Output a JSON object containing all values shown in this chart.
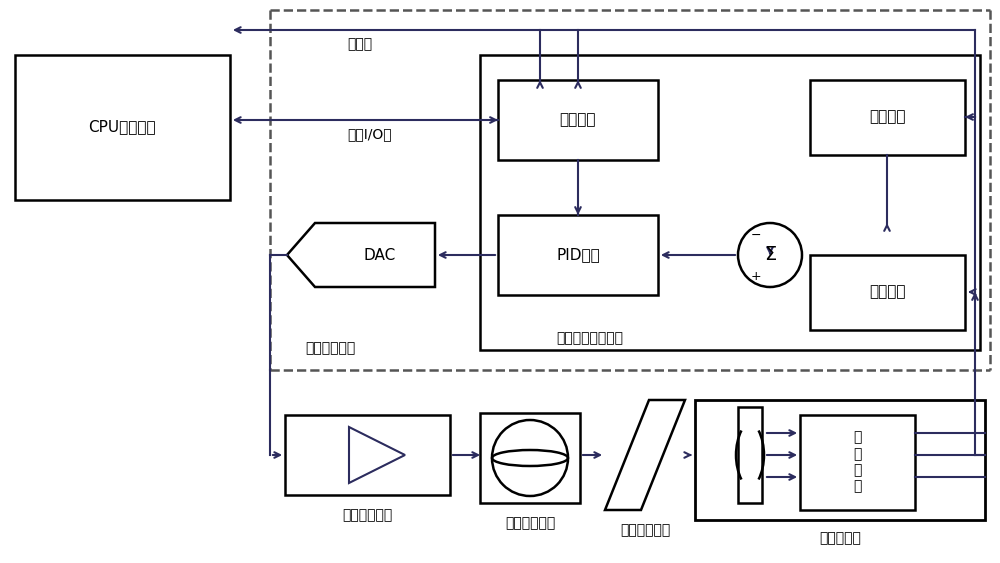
{
  "bg": "#ffffff",
  "lc": "#000000",
  "dc": "#555555",
  "arrow_color": "#2c2c5e",
  "fw": 10.0,
  "fh": 5.63,
  "dpi": 100,
  "labels": {
    "cpu": "CPU主控电路",
    "ctrl_line": "控制线",
    "io": "主机I/O口",
    "host": "主机接口",
    "pid": "PID调节",
    "tgt": "目标位置",
    "fb": "反馈位置",
    "dac": "DAC",
    "chip": "电机专用控制芯片",
    "feedback_cct": "反馈控制电路",
    "drv": "电机驱动电路",
    "motor": "直流无刷电机",
    "grating": "全息衍射光栌",
    "encoder": "光电编码器",
    "interp": "插\n値\n电\n路"
  }
}
